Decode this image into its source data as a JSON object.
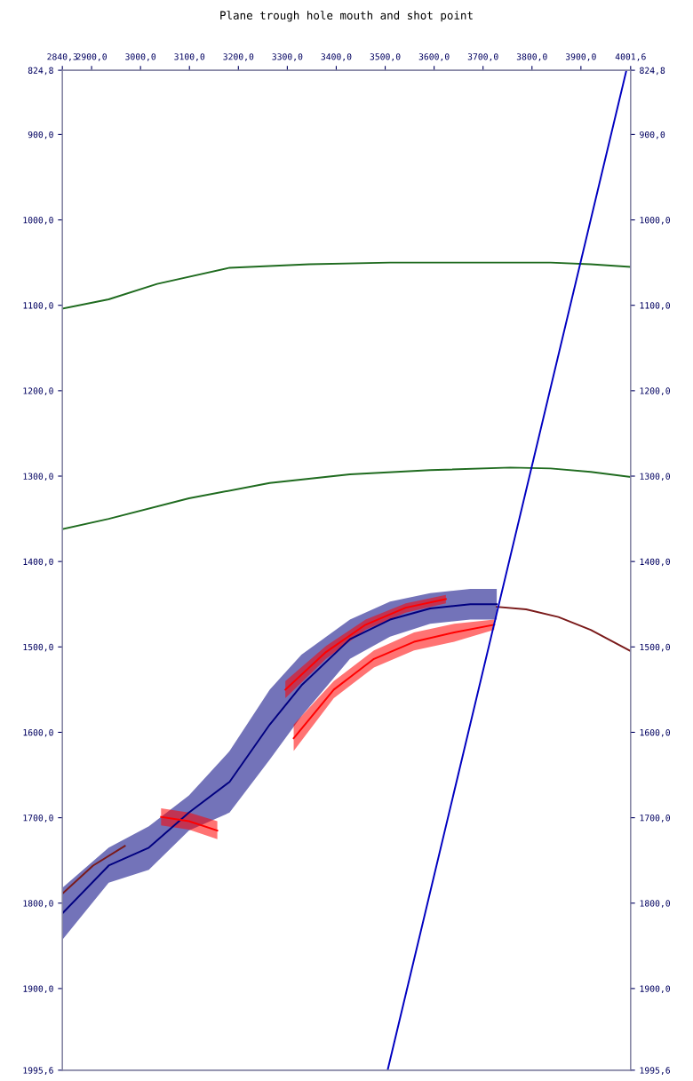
{
  "chart_data": {
    "type": "line",
    "title": "Plane trough hole mouth and shot point",
    "xlim": [
      2840.3,
      4001.6
    ],
    "ylim": [
      1995.6,
      824.8
    ],
    "y2lim": [
      1995.6,
      824.8
    ],
    "xticks": [
      {
        "value": 2840.3,
        "label": "2840,3"
      },
      {
        "value": 2900,
        "label": "2900,0"
      },
      {
        "value": 3000,
        "label": "3000,0"
      },
      {
        "value": 3100,
        "label": "3100,0"
      },
      {
        "value": 3200,
        "label": "3200,0"
      },
      {
        "value": 3300,
        "label": "3300,0"
      },
      {
        "value": 3400,
        "label": "3400,0"
      },
      {
        "value": 3500,
        "label": "3500,0"
      },
      {
        "value": 3600,
        "label": "3600,0"
      },
      {
        "value": 3700,
        "label": "3700,0"
      },
      {
        "value": 3800,
        "label": "3800,0"
      },
      {
        "value": 3900,
        "label": "3900,0"
      },
      {
        "value": 4001.6,
        "label": "4001,6"
      }
    ],
    "yticks": [
      {
        "value": 824.8,
        "label": "824,8"
      },
      {
        "value": 900,
        "label": "900,0"
      },
      {
        "value": 1000,
        "label": "1000,0"
      },
      {
        "value": 1100,
        "label": "1100,0"
      },
      {
        "value": 1200,
        "label": "1200,0"
      },
      {
        "value": 1300,
        "label": "1300,0"
      },
      {
        "value": 1400,
        "label": "1400,0"
      },
      {
        "value": 1500,
        "label": "1500,0"
      },
      {
        "value": 1600,
        "label": "1600,0"
      },
      {
        "value": 1700,
        "label": "1700,0"
      },
      {
        "value": 1800,
        "label": "1800,0"
      },
      {
        "value": 1900,
        "label": "1900,0"
      },
      {
        "value": 1995.6,
        "label": "1995,6"
      }
    ],
    "y2ticks": [
      {
        "value": 824.8,
        "label": "824,8"
      },
      {
        "value": 900,
        "label": "900,0"
      },
      {
        "value": 1000,
        "label": "1000,0"
      },
      {
        "value": 1100,
        "label": "1100,0"
      },
      {
        "value": 1200,
        "label": "1200,0"
      },
      {
        "value": 1300,
        "label": "1300,0"
      },
      {
        "value": 1400,
        "label": "1400,0"
      },
      {
        "value": 1500,
        "label": "1500,0"
      },
      {
        "value": 1600,
        "label": "1600,0"
      },
      {
        "value": 1700,
        "label": "1700,0"
      },
      {
        "value": 1800,
        "label": "1800,0"
      },
      {
        "value": 1900,
        "label": "1900,0"
      },
      {
        "value": 1995.6,
        "label": "1995,6"
      }
    ],
    "grid": false,
    "legend": false,
    "series": [
      {
        "color": "#000080",
        "x": [
          2840.3,
          2935,
          3017,
          3099,
          3182,
          3264,
          3329,
          3428,
          3510,
          3592,
          3674,
          3728
        ],
        "values": [
          1812,
          1756,
          1735,
          1694,
          1658,
          1591,
          1545,
          1491,
          1468,
          1455,
          1450,
          1450
        ],
        "upper": [
          1782,
          1735,
          1710,
          1674,
          1622,
          1550,
          1509,
          1468,
          1447,
          1437,
          1432,
          1432
        ],
        "lower": [
          1843,
          1776,
          1761,
          1715,
          1694,
          1632,
          1581,
          1514,
          1488,
          1473,
          1468,
          1468
        ]
      },
      {
        "color": "#ff0000",
        "x": [
          3296,
          3379,
          3460,
          3542,
          3624
        ],
        "values": [
          1550,
          1506,
          1474,
          1454,
          1444
        ],
        "upper": [
          1540,
          1499,
          1468,
          1449,
          1439
        ],
        "lower": [
          1560,
          1514,
          1480,
          1460,
          1449
        ]
      },
      {
        "color": "#ff0000",
        "x": [
          3313,
          3395,
          3477,
          3559,
          3641,
          3723
        ],
        "values": [
          1607,
          1550,
          1514,
          1494,
          1483,
          1474
        ],
        "upper": [
          1591,
          1540,
          1504,
          1483,
          1473,
          1468
        ],
        "lower": [
          1622,
          1560,
          1524,
          1504,
          1494,
          1480
        ]
      },
      {
        "color": "#ff0000",
        "x": [
          3042,
          3099,
          3157
        ],
        "values": [
          1699,
          1704,
          1715
        ],
        "upper": [
          1689,
          1694,
          1704
        ],
        "lower": [
          1709,
          1714,
          1725
        ]
      },
      {
        "color": "#1f6b1f",
        "x": [
          2840.3,
          2935,
          3034,
          3182,
          3345,
          3510,
          3674,
          3838,
          3920,
          4001.6
        ],
        "values": [
          1104,
          1093,
          1075,
          1056,
          1052,
          1050,
          1050,
          1050,
          1052,
          1055
        ]
      },
      {
        "color": "#1f6b1f",
        "x": [
          2840.3,
          2935,
          3099,
          3264,
          3428,
          3592,
          3756,
          3838,
          3920,
          4001.6
        ],
        "values": [
          1362,
          1350,
          1326,
          1308,
          1298,
          1293,
          1290,
          1291,
          1295,
          1301
        ]
      },
      {
        "color": "#7a1a1a",
        "x": [
          2840.3,
          2903,
          2968
        ],
        "values": [
          1789,
          1756,
          1733
        ]
      },
      {
        "color": "#7a1a1a",
        "x": [
          3728,
          3788,
          3854,
          3920,
          4001.6
        ],
        "values": [
          1453,
          1456,
          1465,
          1480,
          1505
        ]
      },
      {
        "color": "#0000c0",
        "x": [
          3505,
          3993
        ],
        "values": [
          1995.6,
          824.8
        ]
      }
    ]
  }
}
